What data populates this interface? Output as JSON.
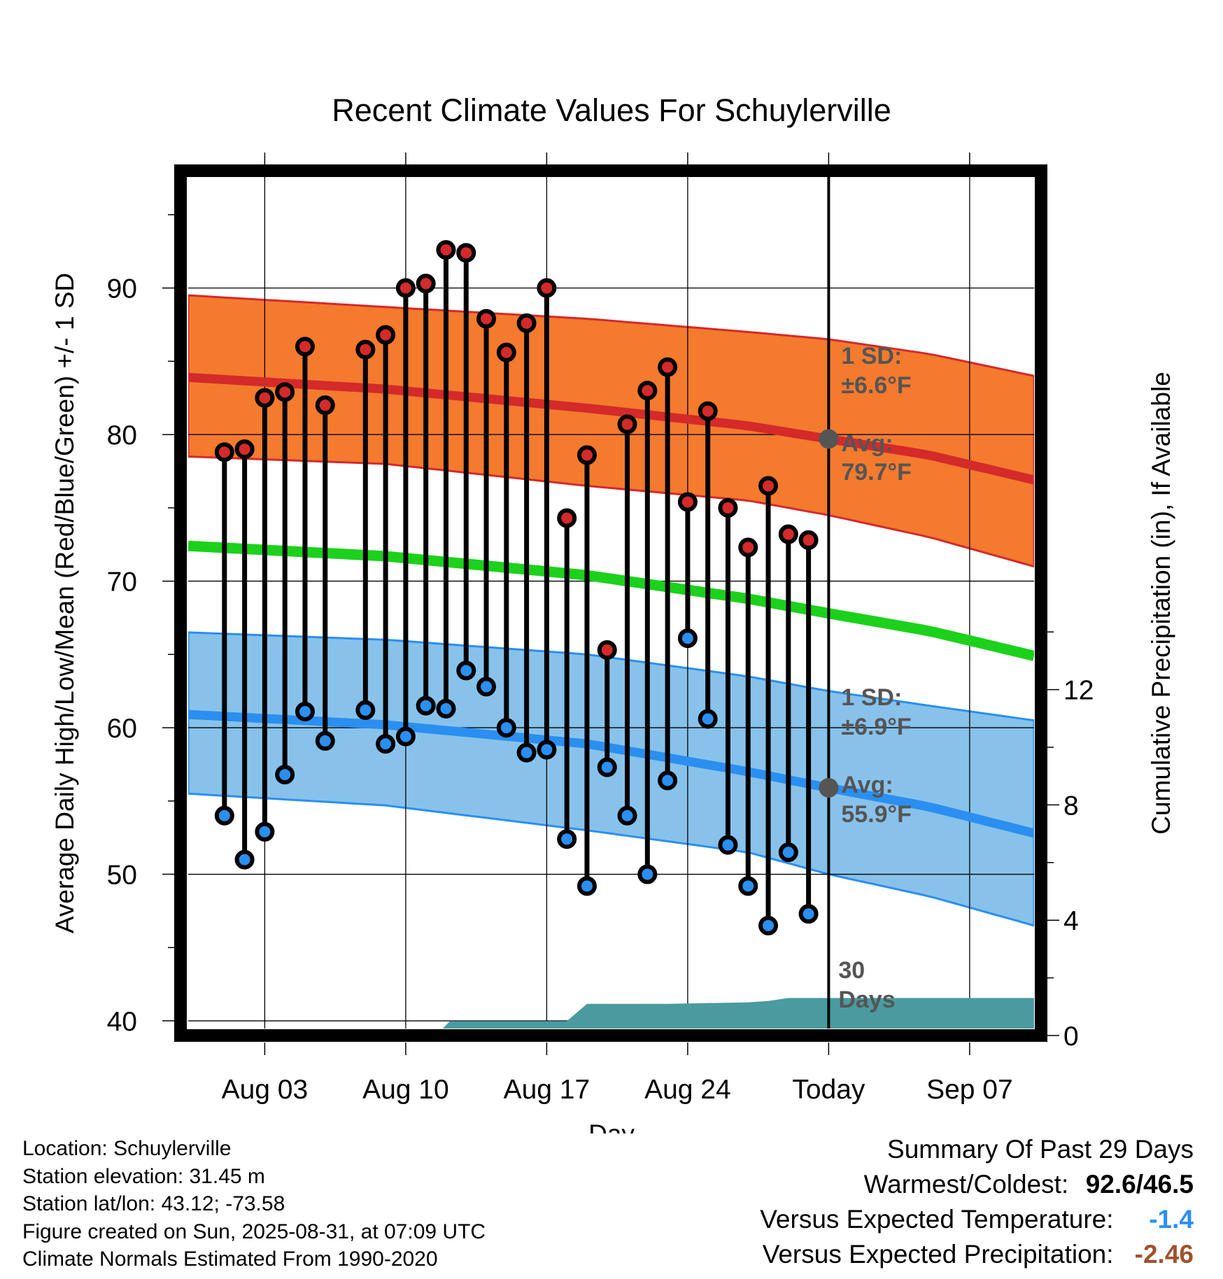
{
  "chart_data": {
    "type": "line",
    "title": "Recent Climate Values For Schuylerville",
    "xlabel": "Day",
    "ylabel": "Average Daily High/Low/Mean (Red/Blue/Green) +/- 1 SD",
    "y2label": "Cumulative Precipitation (in), If Available",
    "ylim": [
      39,
      98
    ],
    "y2lim": [
      0,
      30
    ],
    "xlim": [
      -1.8,
      40.2
    ],
    "yticks": [
      40,
      50,
      60,
      70,
      80,
      90
    ],
    "y2ticks": [
      0,
      4,
      8,
      12
    ],
    "x_date_origin": "Aug 01",
    "xticks": [
      {
        "day": 2,
        "label": "Aug 03"
      },
      {
        "day": 9,
        "label": "Aug 10"
      },
      {
        "day": 16,
        "label": "Aug 17"
      },
      {
        "day": 23,
        "label": "Aug 24"
      },
      {
        "day": 30,
        "label": "Today"
      },
      {
        "day": 37,
        "label": "Sep 07"
      }
    ],
    "today_day": 30,
    "grid": true,
    "observed_days": [
      0,
      1,
      2,
      3,
      4,
      5,
      7,
      8,
      9,
      10,
      11,
      12,
      13,
      14,
      15,
      16,
      17,
      18,
      19,
      20,
      21,
      22,
      23,
      24,
      25,
      26,
      27,
      28,
      29
    ],
    "series": [
      {
        "name": "High",
        "color": "#d42a2a",
        "values": [
          78.8,
          79.0,
          82.5,
          82.9,
          86.0,
          82.0,
          85.8,
          86.8,
          90.0,
          90.3,
          92.6,
          92.4,
          87.9,
          85.6,
          87.6,
          90.0,
          74.3,
          78.6,
          65.3,
          80.7,
          83.0,
          84.6,
          75.4,
          81.6,
          75.0,
          72.3,
          76.5,
          73.2,
          72.8
        ]
      },
      {
        "name": "Low",
        "color": "#2a8ff0",
        "values": [
          54.0,
          51.0,
          52.9,
          56.8,
          61.1,
          59.1,
          61.2,
          58.9,
          59.4,
          61.5,
          61.3,
          63.9,
          62.8,
          60.0,
          58.3,
          58.5,
          52.4,
          49.2,
          57.3,
          54.0,
          50.0,
          56.4,
          66.1,
          60.6,
          52.0,
          49.2,
          46.5,
          51.5,
          47.3
        ]
      }
    ],
    "normals": {
      "days": [
        -1.8,
        8,
        18,
        26,
        30,
        35,
        40.2
      ],
      "high_avg": [
        83.9,
        83.1,
        81.8,
        80.6,
        79.7,
        78.6,
        76.9
      ],
      "high_sd": 6.6,
      "low_avg": [
        60.9,
        60.2,
        58.9,
        57.0,
        55.9,
        54.6,
        52.8
      ],
      "low_sd": 6.9,
      "mean_avg": [
        72.4,
        71.7,
        70.4,
        68.8,
        67.8,
        66.6,
        64.9
      ],
      "high_band_upper": [
        89.5,
        88.7,
        87.9,
        87.0,
        86.5,
        85.5,
        84.0
      ],
      "high_band_lower": [
        78.5,
        78.0,
        76.5,
        75.5,
        74.5,
        73.0,
        71.0
      ],
      "low_band_upper": [
        66.5,
        66.0,
        65.0,
        63.5,
        62.5,
        61.5,
        60.5
      ],
      "low_band_lower": [
        55.5,
        54.7,
        53.0,
        51.5,
        50.0,
        48.5,
        46.5
      ],
      "high_color": "#f47a2e",
      "high_band_color": "#d42a2a",
      "low_color": "#88c2ea",
      "low_band_color": "#2a8ff0",
      "mean_color": "#1cd11c"
    },
    "precip": {
      "color": "#4a9ba0",
      "days": [
        10.5,
        11.2,
        17.0,
        18.0,
        22.0,
        26.0,
        27.0,
        28.0,
        40.2
      ],
      "cumulative": [
        0.0,
        0.5,
        0.5,
        1.1,
        1.1,
        1.15,
        1.2,
        1.3,
        1.3
      ]
    },
    "annotations": {
      "high_sd": "1 SD:",
      "high_sd_value": "±6.6°F",
      "high_avg": "Avg:",
      "high_avg_value": "79.7°F",
      "low_sd": "1 SD:",
      "low_sd_value": "±6.9°F",
      "low_avg": "Avg:",
      "low_avg_value": "55.9°F",
      "days_num": "30",
      "days_word": "Days"
    }
  },
  "footer": {
    "location": "Location: Schuylerville",
    "elevation": "Station elevation: 31.45 m",
    "latlon": "Station lat/lon: 43.12; -73.58",
    "created": "Figure created on Sun, 2025-08-31, at 07:09 UTC",
    "normals": "Climate Normals Estimated From 1990-2020"
  },
  "summary": {
    "title": "Summary Of Past 29 Days",
    "warmest_label": "Warmest/Coldest:",
    "warmest_value": "92.6/46.5",
    "temp_label": "Versus Expected Temperature:",
    "temp_value": "-1.4",
    "temp_color": "#2a8ff0",
    "precip_label": "Versus Expected Precipitation:",
    "precip_value": "-2.46",
    "precip_color": "#a0522d"
  }
}
